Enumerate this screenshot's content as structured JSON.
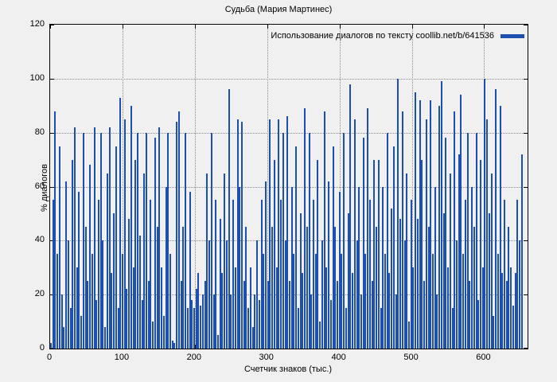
{
  "title": "Судьба (Мария Мартинес)",
  "legend": {
    "label": "Использование диалогов по тексту coollib.net/b/641536"
  },
  "colors": {
    "bar": "#1d4fae",
    "grid": "#8a8a8a",
    "background": "#f0f0f0"
  },
  "chart_data": {
    "type": "bar",
    "title": "Судьба (Мария Мартинес)",
    "xlabel": "Счетчик знаков (тыс.)",
    "ylabel": "% диалогов",
    "legend": "Использование диалогов по тексту coollib.net/b/641536",
    "ylim": [
      0,
      120
    ],
    "xlim": [
      0,
      660
    ],
    "y_ticks": [
      0,
      20,
      40,
      60,
      80,
      100,
      120
    ],
    "x_ticks": [
      0,
      100,
      200,
      300,
      400,
      500,
      600
    ],
    "grid": true,
    "legend_position": "top-right",
    "x_step": 3,
    "values": [
      2,
      55,
      88,
      35,
      75,
      20,
      8,
      62,
      40,
      15,
      70,
      82,
      30,
      58,
      12,
      80,
      45,
      25,
      68,
      35,
      82,
      18,
      55,
      80,
      40,
      8,
      65,
      82,
      28,
      50,
      75,
      15,
      93,
      35,
      85,
      22,
      48,
      90,
      30,
      70,
      80,
      42,
      18,
      65,
      80,
      25,
      55,
      10,
      78,
      45,
      82,
      30,
      12,
      60,
      80,
      35,
      3,
      2,
      84,
      88,
      25,
      45,
      80,
      15,
      58,
      18,
      15,
      22,
      28,
      16,
      20,
      25,
      65,
      40,
      80,
      20,
      55,
      5,
      48,
      28,
      65,
      40,
      96,
      20,
      55,
      30,
      85,
      60,
      84,
      25,
      45,
      15,
      30,
      8,
      20,
      40,
      18,
      55,
      35,
      62,
      25,
      85,
      45,
      70,
      30,
      85,
      55,
      80,
      40,
      86,
      25,
      60,
      35,
      75,
      15,
      50,
      28,
      89,
      45,
      80,
      20,
      55,
      35,
      70,
      10,
      40,
      88,
      30,
      62,
      18,
      75,
      45,
      25,
      58,
      35,
      80,
      15,
      50,
      98,
      28,
      85,
      40,
      60,
      20,
      78,
      35,
      89,
      55,
      25,
      70,
      45,
      70,
      15,
      60,
      35,
      80,
      28,
      52,
      75,
      20,
      100,
      48,
      88,
      40,
      65,
      10,
      55,
      30,
      95,
      48,
      92,
      70,
      25,
      85,
      45,
      92,
      35,
      60,
      20,
      90,
      99,
      50,
      78,
      30,
      65,
      15,
      88,
      40,
      72,
      94,
      35,
      55,
      80,
      25,
      60,
      45,
      80,
      18,
      70,
      30,
      100,
      85,
      50,
      65,
      12,
      96,
      35,
      90,
      28,
      55,
      25,
      45,
      30,
      16,
      28,
      55,
      40,
      72
    ]
  }
}
